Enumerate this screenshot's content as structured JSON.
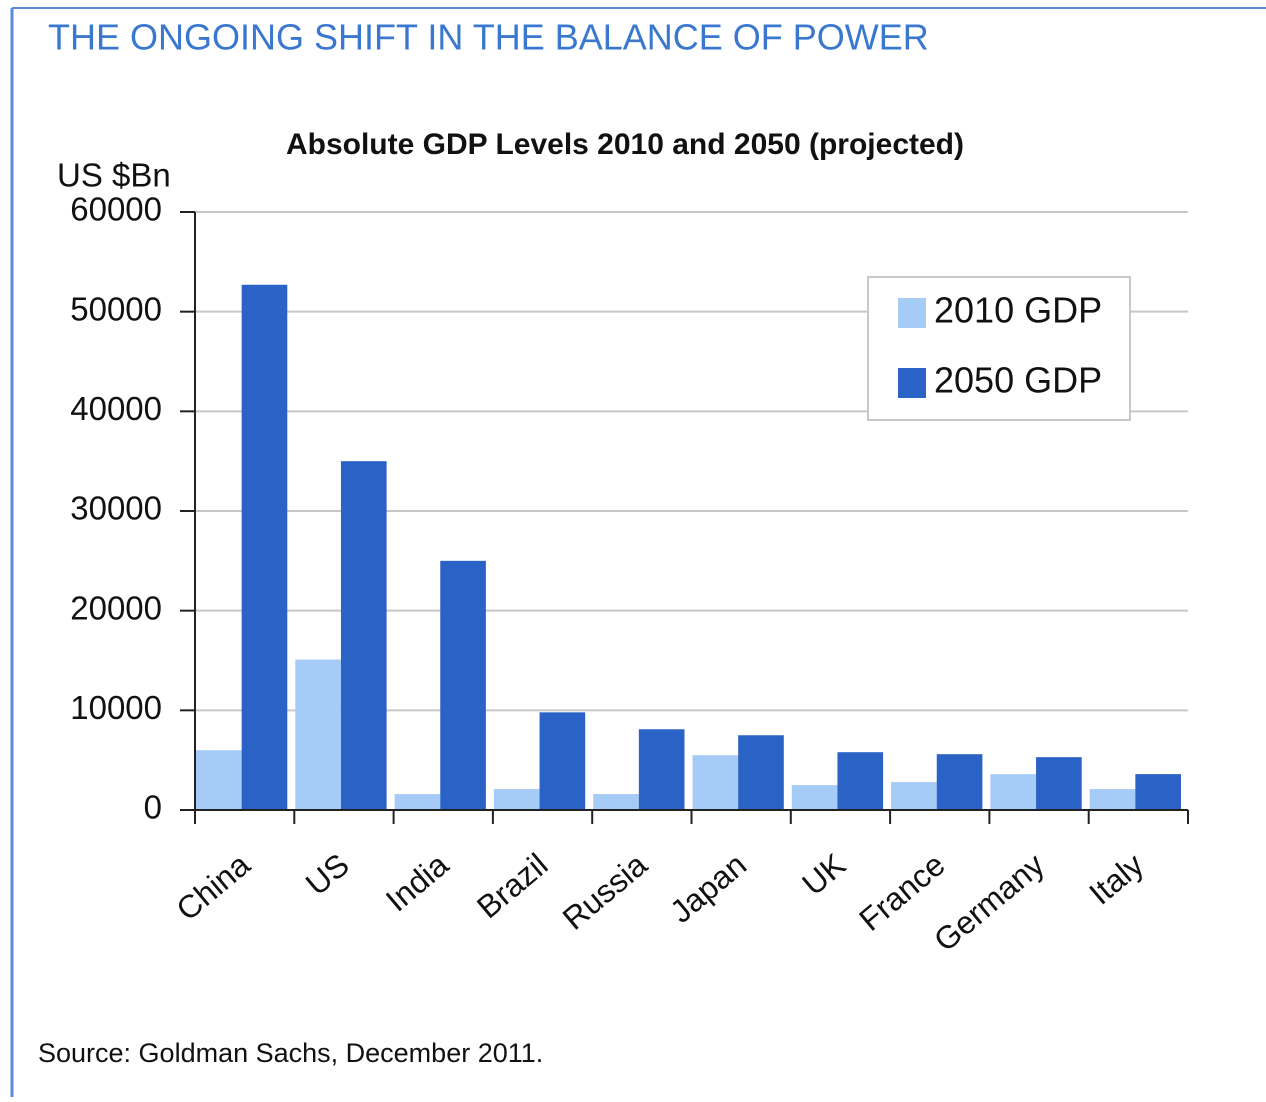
{
  "header": {
    "title": "THE ONGOING SHIFT IN THE BALANCE OF POWER"
  },
  "chart_data": {
    "type": "bar",
    "title": "Absolute GDP Levels 2010 and 2050 (projected)",
    "y_label": "US $Bn",
    "categories": [
      "China",
      "US",
      "India",
      "Brazil",
      "Russia",
      "Japan",
      "UK",
      "France",
      "Germany",
      "Italy"
    ],
    "series": [
      {
        "name": "2010 GDP",
        "color": "#a6cbf7",
        "values": [
          6000,
          15100,
          1600,
          2100,
          1600,
          5500,
          2500,
          2800,
          3600,
          2100
        ]
      },
      {
        "name": "2050 GDP",
        "color": "#2b62c6",
        "values": [
          52700,
          35000,
          25000,
          9800,
          8100,
          7500,
          5800,
          5600,
          5300,
          3600
        ]
      }
    ],
    "ylim": [
      0,
      60000
    ],
    "yticks": [
      0,
      10000,
      20000,
      30000,
      40000,
      50000,
      60000
    ],
    "grid": true,
    "legend": "upper-right"
  },
  "footer": {
    "source": "Source: Goldman Sachs, December 2011."
  }
}
